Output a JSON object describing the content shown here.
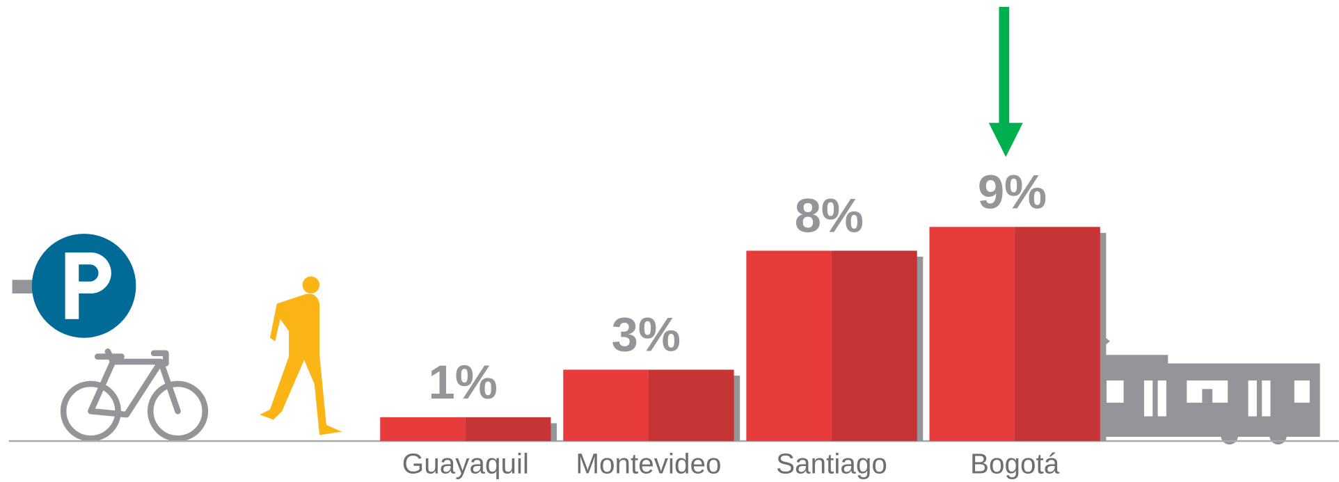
{
  "chart_data": {
    "type": "bar",
    "categories": [
      "Guayaquil",
      "Montevideo",
      "Santiago",
      "Bogotá"
    ],
    "values": [
      1,
      3,
      8,
      9
    ],
    "value_labels": [
      "1%",
      "3%",
      "8%",
      "9%"
    ],
    "colors": [
      "#e83b3b",
      "#c73436"
    ]
  }
}
